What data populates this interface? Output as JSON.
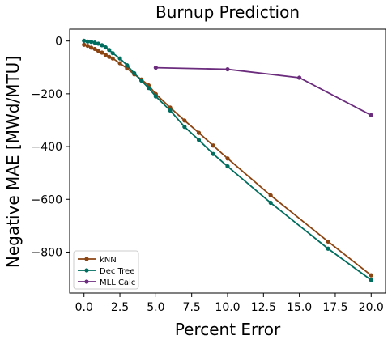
{
  "chart_data": {
    "type": "line",
    "title": "Burnup Prediction",
    "xlabel": "Percent Error",
    "ylabel": "Negative MAE [MWd/MTU]",
    "xlim": [
      -1.0,
      21.0
    ],
    "ylim": [
      -955,
      45
    ],
    "xticks": [
      0.0,
      2.5,
      5.0,
      7.5,
      10.0,
      12.5,
      15.0,
      17.5,
      20.0
    ],
    "xtick_labels": [
      "0.0",
      "2.5",
      "5.0",
      "7.5",
      "10.0",
      "12.5",
      "15.0",
      "17.5",
      "20.0"
    ],
    "yticks": [
      0,
      -200,
      -400,
      -600,
      -800
    ],
    "ytick_labels": [
      "0",
      "−200",
      "−400",
      "−600",
      "−800"
    ],
    "grid": false,
    "legend_position": "lower-left",
    "series": [
      {
        "name": "kNN",
        "color": "#8b4513",
        "x": [
          0.0,
          0.25,
          0.5,
          0.75,
          1.0,
          1.25,
          1.5,
          1.75,
          2.0,
          2.5,
          3.0,
          3.5,
          4.0,
          4.5,
          5.0,
          6.0,
          7.0,
          8.0,
          9.0,
          10.0,
          13.0,
          17.0,
          20.0
        ],
        "y": [
          -14,
          -18,
          -25,
          -30,
          -37,
          -44,
          -52,
          -60,
          -66,
          -84,
          -104,
          -126,
          -146,
          -168,
          -201,
          -252,
          -301,
          -348,
          -396,
          -445,
          -585,
          -760,
          -888
        ]
      },
      {
        "name": "Dec Tree",
        "color": "#006d5f",
        "x": [
          0.0,
          0.25,
          0.5,
          0.75,
          1.0,
          1.25,
          1.5,
          1.75,
          2.0,
          2.5,
          3.0,
          3.5,
          4.0,
          4.5,
          5.0,
          6.0,
          7.0,
          8.0,
          9.0,
          10.0,
          13.0,
          17.0,
          20.0
        ],
        "y": [
          1,
          -2,
          -3,
          -6,
          -10,
          -16,
          -24,
          -34,
          -46,
          -66,
          -92,
          -122,
          -150,
          -178,
          -210,
          -263,
          -325,
          -375,
          -428,
          -475,
          -613,
          -787,
          -906
        ]
      },
      {
        "name": "MLL Calc",
        "color": "#6b2c7d",
        "x": [
          5.0,
          10.0,
          15.0,
          20.0
        ],
        "y": [
          -101,
          -107,
          -139,
          -281
        ]
      }
    ]
  }
}
